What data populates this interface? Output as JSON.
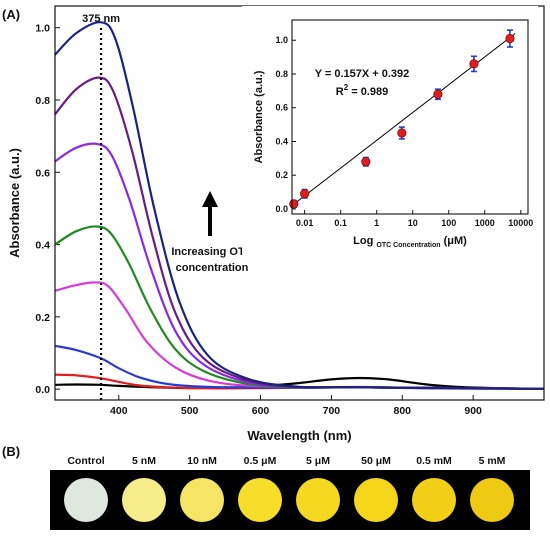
{
  "panels": {
    "a_label": "(A)",
    "b_label": "(B)"
  },
  "chart_data": [
    {
      "type": "line",
      "xlabel": "Wavelength (nm)",
      "ylabel": "Absorbance (a.u.)",
      "xlim": [
        310,
        1000
      ],
      "ylim": [
        -0.03,
        1.06
      ],
      "x_ticks": [
        400,
        500,
        600,
        700,
        800,
        900
      ],
      "y_ticks": [
        0.0,
        0.2,
        0.4,
        0.6,
        0.8,
        1.0
      ],
      "peak_marker": {
        "x": 375,
        "label": "375 nm"
      },
      "annotation": {
        "line1": "Increasing OTC",
        "line2": "concentration"
      },
      "series": [
        {
          "color": "#000000",
          "points": [
            [
              310,
              0.012
            ],
            [
              340,
              0.013
            ],
            [
              375,
              0.012
            ],
            [
              400,
              0.009
            ],
            [
              450,
              0.005
            ],
            [
              500,
              0.003
            ],
            [
              550,
              0.004
            ],
            [
              600,
              0.008
            ],
            [
              650,
              0.016
            ],
            [
              700,
              0.027
            ],
            [
              740,
              0.031
            ],
            [
              780,
              0.027
            ],
            [
              830,
              0.014
            ],
            [
              880,
              0.006
            ],
            [
              950,
              0.002
            ],
            [
              1000,
              0.001
            ]
          ]
        },
        {
          "color": "#e02020",
          "points": [
            [
              310,
              0.04
            ],
            [
              340,
              0.038
            ],
            [
              375,
              0.03
            ],
            [
              400,
              0.02
            ],
            [
              430,
              0.01
            ],
            [
              480,
              0.004
            ],
            [
              550,
              0.002
            ],
            [
              650,
              0.004
            ],
            [
              740,
              0.006
            ],
            [
              830,
              0.003
            ],
            [
              1000,
              0.001
            ]
          ]
        },
        {
          "color": "#2a3ccf",
          "points": [
            [
              310,
              0.12
            ],
            [
              340,
              0.108
            ],
            [
              375,
              0.085
            ],
            [
              400,
              0.058
            ],
            [
              430,
              0.032
            ],
            [
              470,
              0.014
            ],
            [
              530,
              0.006
            ],
            [
              650,
              0.004
            ],
            [
              740,
              0.005
            ],
            [
              850,
              0.002
            ],
            [
              1000,
              0.001
            ]
          ]
        },
        {
          "color": "#d83bd8",
          "points": [
            [
              310,
              0.272
            ],
            [
              340,
              0.288
            ],
            [
              365,
              0.295
            ],
            [
              385,
              0.285
            ],
            [
              410,
              0.22
            ],
            [
              440,
              0.13
            ],
            [
              480,
              0.06
            ],
            [
              530,
              0.022
            ],
            [
              600,
              0.008
            ],
            [
              740,
              0.005
            ],
            [
              1000,
              0.001
            ]
          ]
        },
        {
          "color": "#1f8a1f",
          "points": [
            [
              310,
              0.4
            ],
            [
              340,
              0.437
            ],
            [
              370,
              0.45
            ],
            [
              390,
              0.428
            ],
            [
              415,
              0.345
            ],
            [
              445,
              0.22
            ],
            [
              480,
              0.11
            ],
            [
              520,
              0.05
            ],
            [
              580,
              0.015
            ],
            [
              650,
              0.005
            ],
            [
              740,
              0.005
            ],
            [
              1000,
              0.001
            ]
          ]
        },
        {
          "color": "#8a2be2",
          "points": [
            [
              310,
              0.63
            ],
            [
              340,
              0.668
            ],
            [
              370,
              0.678
            ],
            [
              390,
              0.647
            ],
            [
              415,
              0.525
            ],
            [
              445,
              0.335
            ],
            [
              480,
              0.16
            ],
            [
              520,
              0.068
            ],
            [
              580,
              0.02
            ],
            [
              650,
              0.006
            ],
            [
              740,
              0.005
            ],
            [
              1000,
              0.001
            ]
          ]
        },
        {
          "color": "#6a1b86",
          "points": [
            [
              310,
              0.76
            ],
            [
              340,
              0.83
            ],
            [
              372,
              0.862
            ],
            [
              392,
              0.825
            ],
            [
              418,
              0.665
            ],
            [
              448,
              0.42
            ],
            [
              480,
              0.21
            ],
            [
              520,
              0.085
            ],
            [
              580,
              0.025
            ],
            [
              650,
              0.006
            ],
            [
              740,
              0.005
            ],
            [
              1000,
              0.001
            ]
          ]
        },
        {
          "color": "#1a237e",
          "points": [
            [
              310,
              0.925
            ],
            [
              340,
              0.985
            ],
            [
              375,
              1.015
            ],
            [
              395,
              0.97
            ],
            [
              420,
              0.78
            ],
            [
              450,
              0.5
            ],
            [
              485,
              0.245
            ],
            [
              525,
              0.095
            ],
            [
              580,
              0.03
            ],
            [
              650,
              0.007
            ],
            [
              740,
              0.005
            ],
            [
              1000,
              0.001
            ]
          ]
        }
      ]
    },
    {
      "type": "scatter",
      "xlabel_prefix": "Log ",
      "xlabel_sub": "OTC Concentration",
      "xlabel_suffix": " (μM)",
      "ylabel": "Absorbance (a.u.)",
      "xscale": "log",
      "xlim_log10": [
        -2.35,
        4.2
      ],
      "ylim": [
        -0.03,
        1.12
      ],
      "x_ticks": [
        0.01,
        0.1,
        1,
        10,
        100,
        1000,
        10000
      ],
      "x_tick_labels": [
        "0.01",
        "0.1",
        "1",
        "10",
        "100",
        "1000",
        "10000"
      ],
      "y_ticks": [
        0.0,
        0.2,
        0.4,
        0.6,
        0.8,
        1.0
      ],
      "equation": "Y = 0.157X + 0.392",
      "r2_prefix": "R",
      "r2_sup": "2",
      "r2_suffix": " = 0.989",
      "fit": {
        "slope": 0.157,
        "intercept": 0.392
      },
      "points": [
        {
          "x": 0.005,
          "y": 0.03,
          "err": 0.02
        },
        {
          "x": 0.01,
          "y": 0.09,
          "err": 0.025
        },
        {
          "x": 0.5,
          "y": 0.28,
          "err": 0.025
        },
        {
          "x": 5,
          "y": 0.45,
          "err": 0.035
        },
        {
          "x": 50,
          "y": 0.68,
          "err": 0.03
        },
        {
          "x": 500,
          "y": 0.86,
          "err": 0.045
        },
        {
          "x": 5000,
          "y": 1.01,
          "err": 0.05
        }
      ],
      "marker_color": "#e01e1e",
      "error_color": "#2a3ccf"
    }
  ],
  "wells": [
    {
      "label": "Control",
      "color": "#dfe8df"
    },
    {
      "label": "5 nM",
      "color": "#f6ec8a"
    },
    {
      "label": "10 nM",
      "color": "#f6e565"
    },
    {
      "label": "0.5 μM",
      "color": "#f6de2a"
    },
    {
      "label": "5 μM",
      "color": "#f5d920"
    },
    {
      "label": "50 μM",
      "color": "#f4d51a"
    },
    {
      "label": "0.5 mM",
      "color": "#f2d018"
    },
    {
      "label": "5 mM",
      "color": "#efca14"
    }
  ]
}
